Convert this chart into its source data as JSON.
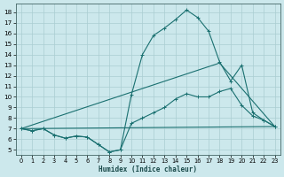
{
  "xlabel": "Humidex (Indice chaleur)",
  "bg_color": "#cce8ec",
  "grid_color": "#aacdd2",
  "line_color": "#1a7070",
  "xlim": [
    -0.5,
    23.5
  ],
  "ylim": [
    4.5,
    18.8
  ],
  "xticks": [
    0,
    1,
    2,
    3,
    4,
    5,
    6,
    7,
    8,
    9,
    10,
    11,
    12,
    13,
    14,
    15,
    16,
    17,
    18,
    19,
    20,
    21,
    22,
    23
  ],
  "yticks": [
    5,
    6,
    7,
    8,
    9,
    10,
    11,
    12,
    13,
    14,
    15,
    16,
    17,
    18
  ],
  "series": [
    {
      "x": [
        0,
        1,
        2,
        3,
        4,
        5,
        6,
        7,
        8,
        9,
        10,
        11,
        12,
        13,
        14,
        15,
        16,
        17,
        18,
        19,
        20,
        21,
        22,
        23
      ],
      "y": [
        7.0,
        6.8,
        7.0,
        6.4,
        6.1,
        6.3,
        6.2,
        5.5,
        4.8,
        5.0,
        10.2,
        14.0,
        15.8,
        16.5,
        17.3,
        18.2,
        17.5,
        16.2,
        13.3,
        11.5,
        13.0,
        8.5,
        7.8,
        7.2
      ],
      "marker": true
    },
    {
      "x": [
        0,
        1,
        2,
        3,
        4,
        5,
        6,
        7,
        8,
        9,
        10,
        11,
        12,
        13,
        14,
        15,
        16,
        17,
        18,
        19,
        20,
        21,
        22,
        23
      ],
      "y": [
        7.0,
        6.8,
        7.0,
        6.4,
        6.1,
        6.3,
        6.2,
        5.5,
        4.8,
        5.0,
        7.5,
        8.0,
        8.5,
        9.0,
        9.8,
        10.3,
        10.0,
        10.0,
        10.5,
        10.8,
        9.2,
        8.2,
        7.8,
        7.2
      ],
      "marker": true
    },
    {
      "x": [
        0,
        23
      ],
      "y": [
        7.0,
        7.2
      ],
      "marker": false
    },
    {
      "x": [
        0,
        18,
        23
      ],
      "y": [
        7.0,
        13.2,
        7.2
      ],
      "marker": false
    }
  ]
}
